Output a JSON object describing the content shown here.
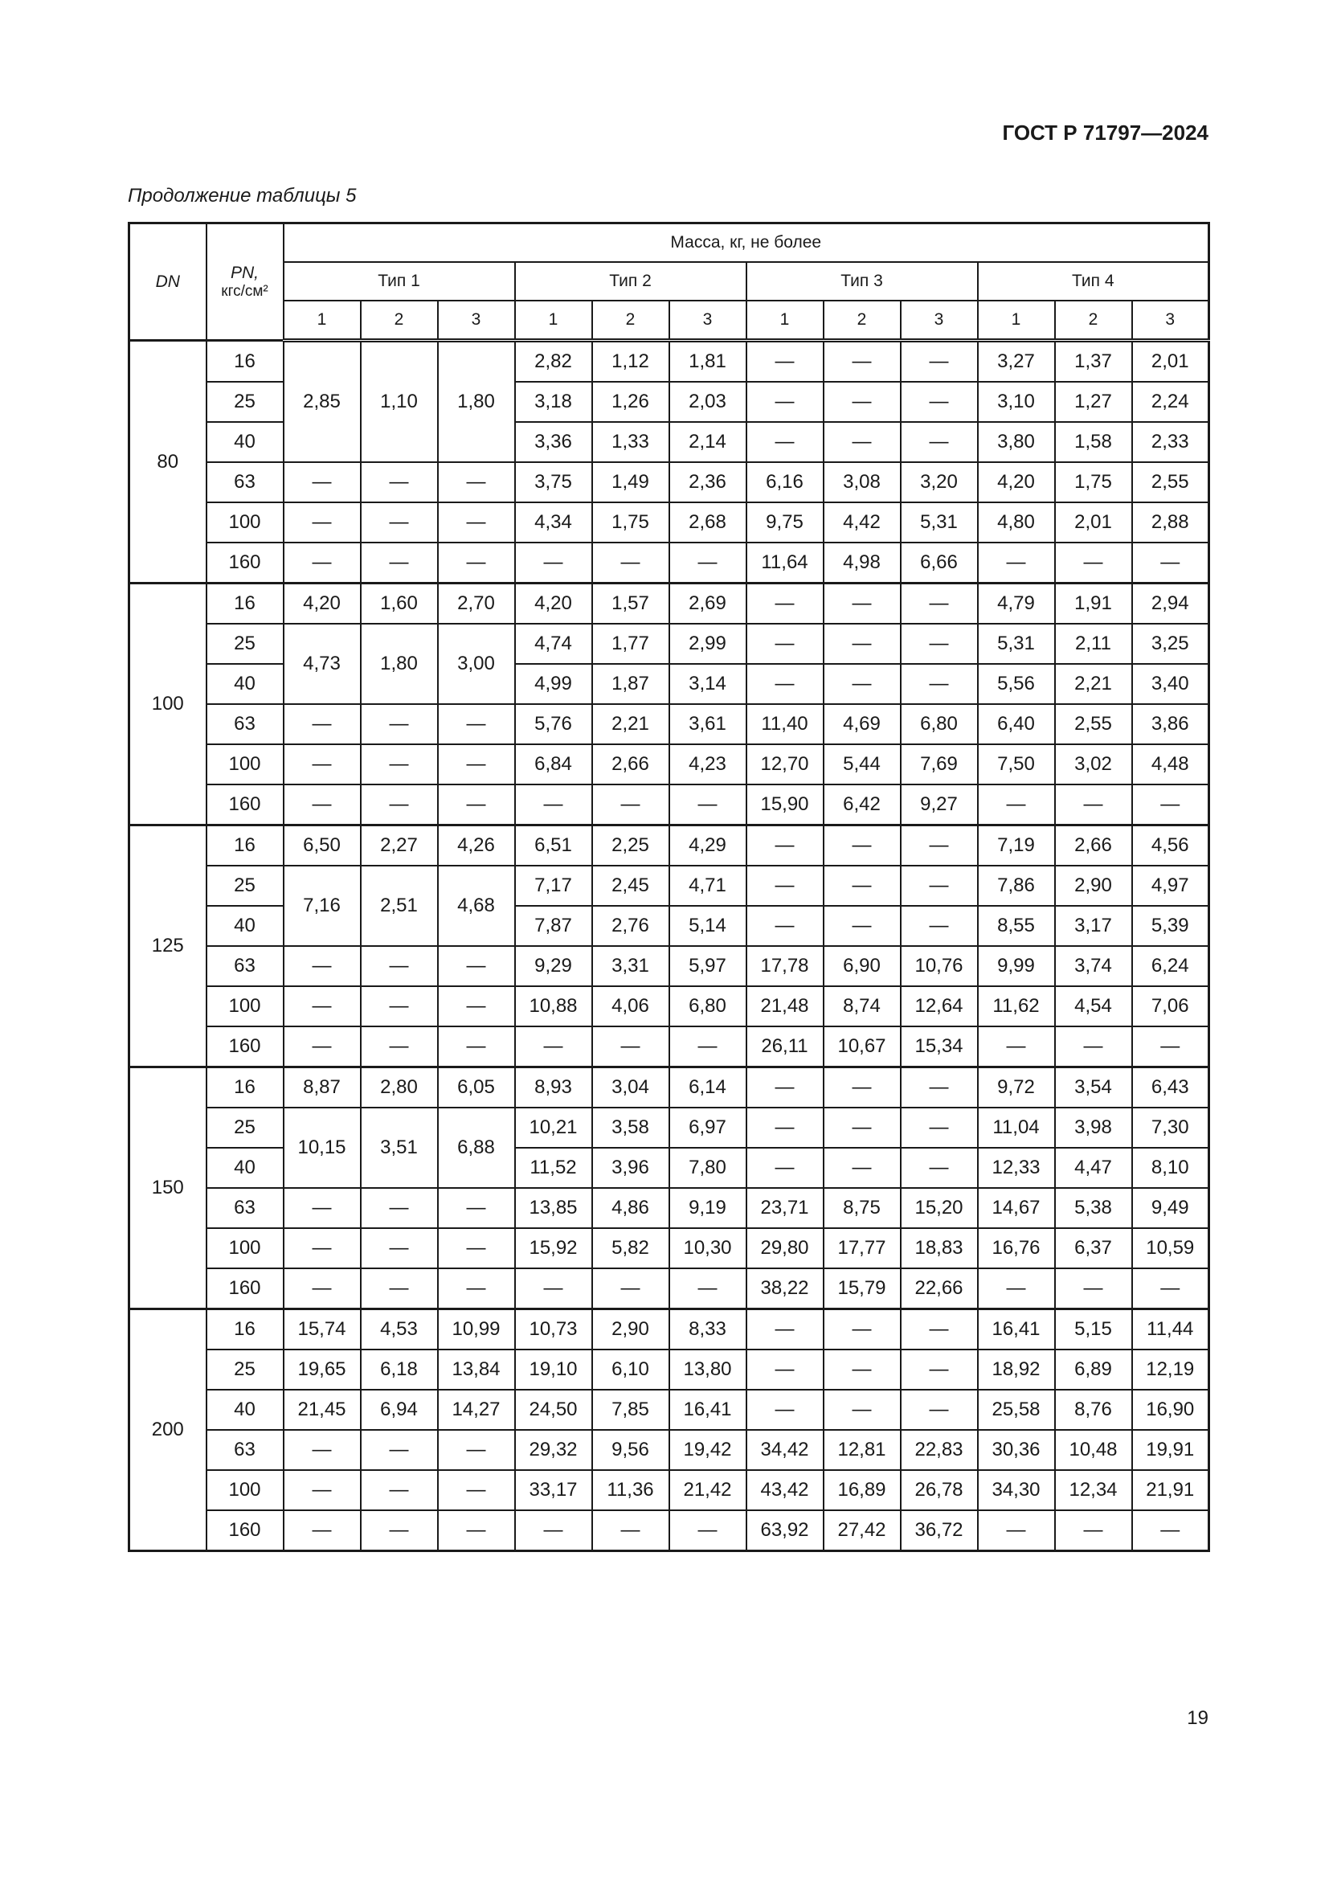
{
  "header": {
    "doc_code": "ГОСТ Р 71797—2024",
    "caption": "Продолжение таблицы 5"
  },
  "table": {
    "col_dn": "DN",
    "col_pn": "PN,",
    "col_pn_unit": "кгс/см²",
    "mass_header": "Масса, кг, не более",
    "types": [
      "Тип 1",
      "Тип 2",
      "Тип 3",
      "Тип 4"
    ],
    "subcols": [
      "1",
      "2",
      "3"
    ],
    "groups": [
      {
        "dn": "80",
        "rows": [
          {
            "pn": "16",
            "cells": [
              {
                "v": "2,85",
                "rowspan": 3
              },
              {
                "v": "1,10",
                "rowspan": 3
              },
              {
                "v": "1,80",
                "rowspan": 3
              },
              "2,82",
              "1,12",
              "1,81",
              "—",
              "—",
              "—",
              "3,27",
              "1,37",
              "2,01"
            ]
          },
          {
            "pn": "25",
            "cells": [
              null,
              null,
              null,
              "3,18",
              "1,26",
              "2,03",
              "—",
              "—",
              "—",
              "3,10",
              "1,27",
              "2,24"
            ]
          },
          {
            "pn": "40",
            "cells": [
              null,
              null,
              null,
              "3,36",
              "1,33",
              "2,14",
              "—",
              "—",
              "—",
              "3,80",
              "1,58",
              "2,33"
            ]
          },
          {
            "pn": "63",
            "cells": [
              "—",
              "—",
              "—",
              "3,75",
              "1,49",
              "2,36",
              "6,16",
              "3,08",
              "3,20",
              "4,20",
              "1,75",
              "2,55"
            ]
          },
          {
            "pn": "100",
            "cells": [
              "—",
              "—",
              "—",
              "4,34",
              "1,75",
              "2,68",
              "9,75",
              "4,42",
              "5,31",
              "4,80",
              "2,01",
              "2,88"
            ]
          },
          {
            "pn": "160",
            "cells": [
              "—",
              "—",
              "—",
              "—",
              "—",
              "—",
              "11,64",
              "4,98",
              "6,66",
              "—",
              "—",
              "—"
            ]
          }
        ]
      },
      {
        "dn": "100",
        "rows": [
          {
            "pn": "16",
            "cells": [
              "4,20",
              "1,60",
              "2,70",
              "4,20",
              "1,57",
              "2,69",
              "—",
              "—",
              "—",
              "4,79",
              "1,91",
              "2,94"
            ]
          },
          {
            "pn": "25",
            "cells": [
              {
                "v": "4,73",
                "rowspan": 2
              },
              {
                "v": "1,80",
                "rowspan": 2
              },
              {
                "v": "3,00",
                "rowspan": 2
              },
              "4,74",
              "1,77",
              "2,99",
              "—",
              "—",
              "—",
              "5,31",
              "2,11",
              "3,25"
            ]
          },
          {
            "pn": "40",
            "cells": [
              null,
              null,
              null,
              "4,99",
              "1,87",
              "3,14",
              "—",
              "—",
              "—",
              "5,56",
              "2,21",
              "3,40"
            ]
          },
          {
            "pn": "63",
            "cells": [
              "—",
              "—",
              "—",
              "5,76",
              "2,21",
              "3,61",
              "11,40",
              "4,69",
              "6,80",
              "6,40",
              "2,55",
              "3,86"
            ]
          },
          {
            "pn": "100",
            "cells": [
              "—",
              "—",
              "—",
              "6,84",
              "2,66",
              "4,23",
              "12,70",
              "5,44",
              "7,69",
              "7,50",
              "3,02",
              "4,48"
            ]
          },
          {
            "pn": "160",
            "cells": [
              "—",
              "—",
              "—",
              "—",
              "—",
              "—",
              "15,90",
              "6,42",
              "9,27",
              "—",
              "—",
              "—"
            ]
          }
        ]
      },
      {
        "dn": "125",
        "rows": [
          {
            "pn": "16",
            "cells": [
              "6,50",
              "2,27",
              "4,26",
              "6,51",
              "2,25",
              "4,29",
              "—",
              "—",
              "—",
              "7,19",
              "2,66",
              "4,56"
            ]
          },
          {
            "pn": "25",
            "cells": [
              {
                "v": "7,16",
                "rowspan": 2
              },
              {
                "v": "2,51",
                "rowspan": 2
              },
              {
                "v": "4,68",
                "rowspan": 2
              },
              "7,17",
              "2,45",
              "4,71",
              "—",
              "—",
              "—",
              "7,86",
              "2,90",
              "4,97"
            ]
          },
          {
            "pn": "40",
            "cells": [
              null,
              null,
              null,
              "7,87",
              "2,76",
              "5,14",
              "—",
              "—",
              "—",
              "8,55",
              "3,17",
              "5,39"
            ]
          },
          {
            "pn": "63",
            "cells": [
              "—",
              "—",
              "—",
              "9,29",
              "3,31",
              "5,97",
              "17,78",
              "6,90",
              "10,76",
              "9,99",
              "3,74",
              "6,24"
            ]
          },
          {
            "pn": "100",
            "cells": [
              "—",
              "—",
              "—",
              "10,88",
              "4,06",
              "6,80",
              "21,48",
              "8,74",
              "12,64",
              "11,62",
              "4,54",
              "7,06"
            ]
          },
          {
            "pn": "160",
            "cells": [
              "—",
              "—",
              "—",
              "—",
              "—",
              "—",
              "26,11",
              "10,67",
              "15,34",
              "—",
              "—",
              "—"
            ]
          }
        ]
      },
      {
        "dn": "150",
        "rows": [
          {
            "pn": "16",
            "cells": [
              "8,87",
              "2,80",
              "6,05",
              "8,93",
              "3,04",
              "6,14",
              "—",
              "—",
              "—",
              "9,72",
              "3,54",
              "6,43"
            ]
          },
          {
            "pn": "25",
            "cells": [
              {
                "v": "10,15",
                "rowspan": 2
              },
              {
                "v": "3,51",
                "rowspan": 2
              },
              {
                "v": "6,88",
                "rowspan": 2
              },
              "10,21",
              "3,58",
              "6,97",
              "—",
              "—",
              "—",
              "11,04",
              "3,98",
              "7,30"
            ]
          },
          {
            "pn": "40",
            "cells": [
              null,
              null,
              null,
              "11,52",
              "3,96",
              "7,80",
              "—",
              "—",
              "—",
              "12,33",
              "4,47",
              "8,10"
            ]
          },
          {
            "pn": "63",
            "cells": [
              "—",
              "—",
              "—",
              "13,85",
              "4,86",
              "9,19",
              "23,71",
              "8,75",
              "15,20",
              "14,67",
              "5,38",
              "9,49"
            ]
          },
          {
            "pn": "100",
            "cells": [
              "—",
              "—",
              "—",
              "15,92",
              "5,82",
              "10,30",
              "29,80",
              "17,77",
              "18,83",
              "16,76",
              "6,37",
              "10,59"
            ]
          },
          {
            "pn": "160",
            "cells": [
              "—",
              "—",
              "—",
              "—",
              "—",
              "—",
              "38,22",
              "15,79",
              "22,66",
              "—",
              "—",
              "—"
            ]
          }
        ]
      },
      {
        "dn": "200",
        "rows": [
          {
            "pn": "16",
            "cells": [
              "15,74",
              "4,53",
              "10,99",
              "10,73",
              "2,90",
              "8,33",
              "—",
              "—",
              "—",
              "16,41",
              "5,15",
              "11,44"
            ]
          },
          {
            "pn": "25",
            "cells": [
              "19,65",
              "6,18",
              "13,84",
              "19,10",
              "6,10",
              "13,80",
              "—",
              "—",
              "—",
              "18,92",
              "6,89",
              "12,19"
            ]
          },
          {
            "pn": "40",
            "cells": [
              "21,45",
              "6,94",
              "14,27",
              "24,50",
              "7,85",
              "16,41",
              "—",
              "—",
              "—",
              "25,58",
              "8,76",
              "16,90"
            ]
          },
          {
            "pn": "63",
            "cells": [
              "—",
              "—",
              "—",
              "29,32",
              "9,56",
              "19,42",
              "34,42",
              "12,81",
              "22,83",
              "30,36",
              "10,48",
              "19,91"
            ]
          },
          {
            "pn": "100",
            "cells": [
              "—",
              "—",
              "—",
              "33,17",
              "11,36",
              "21,42",
              "43,42",
              "16,89",
              "26,78",
              "34,30",
              "12,34",
              "21,91"
            ]
          },
          {
            "pn": "160",
            "cells": [
              "—",
              "—",
              "—",
              "—",
              "—",
              "—",
              "63,92",
              "27,42",
              "36,72",
              "—",
              "—",
              "—"
            ]
          }
        ]
      }
    ]
  },
  "footer": {
    "page_number": "19"
  }
}
